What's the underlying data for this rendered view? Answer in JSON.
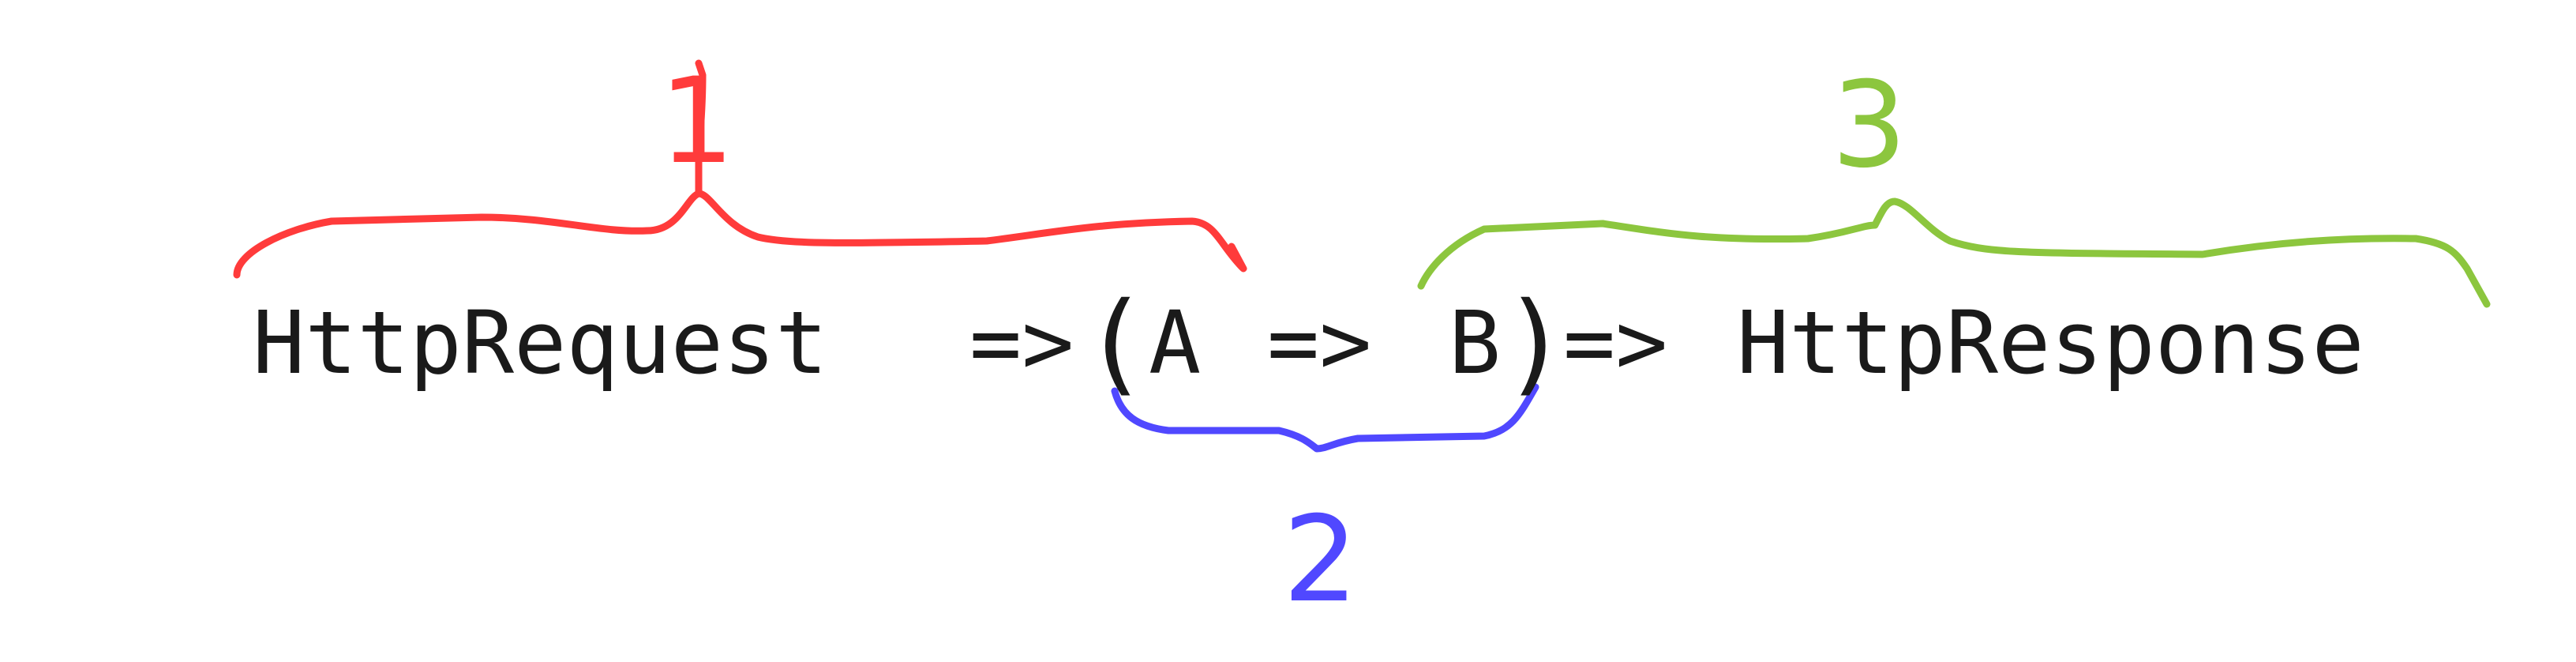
{
  "expression": {
    "input_type": "HttpRequest",
    "arrow_1": "=>",
    "open_paren": "(",
    "type_a": "A",
    "arrow_2": "=>",
    "type_b": "B",
    "close_paren": ")",
    "arrow_3": "=>",
    "output_type": "HttpResponse"
  },
  "annotations": [
    {
      "label": "1",
      "color": "#ff3b3b"
    },
    {
      "label": "2",
      "color": "#5048ff"
    },
    {
      "label": "3",
      "color": "#8cc63e"
    }
  ],
  "text_color": "#1a1a1a"
}
